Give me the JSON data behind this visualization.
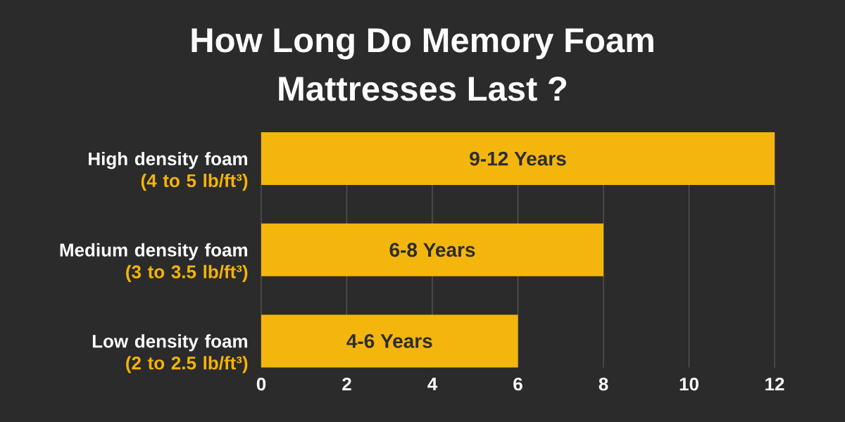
{
  "chart_data": {
    "type": "bar",
    "orientation": "horizontal",
    "title": "How Long Do Memory Foam Mattresses Last ?",
    "categories": [
      "High density foam\n(4 to 5 lb/ft³)",
      "Medium density foam\n(3 to 3.5 lb/ft³)",
      "Low density foam\n(2 to 2.5 lb/ft³)"
    ],
    "values": [
      12,
      8,
      6
    ],
    "value_labels": [
      "9-12 Years",
      "6-8 Years",
      "4-6 Years"
    ],
    "color": "#f4b50c",
    "xlim": [
      0,
      12
    ],
    "xticks": [
      0,
      2,
      4,
      6,
      8,
      10,
      12
    ],
    "grid": "x"
  }
}
